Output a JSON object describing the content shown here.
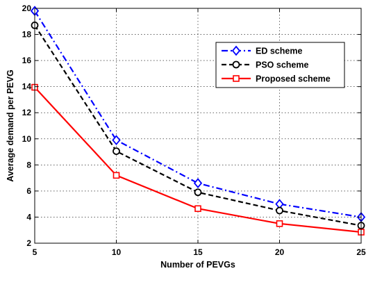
{
  "chart_data": {
    "type": "line",
    "title": "",
    "xlabel": "Number of PEVGs",
    "ylabel": "Average demand per PEVG",
    "x": [
      5,
      10,
      15,
      20,
      25
    ],
    "xlim": [
      5,
      25
    ],
    "ylim": [
      2,
      20
    ],
    "xticks": [
      5,
      10,
      15,
      20,
      25
    ],
    "yticks": [
      2,
      4,
      6,
      8,
      10,
      12,
      14,
      16,
      18,
      20
    ],
    "grid": true,
    "legend_position": "top-right",
    "series": [
      {
        "name": "ED scheme",
        "values": [
          19.8,
          9.9,
          6.6,
          5.0,
          4.0
        ],
        "color": "#0000ff",
        "line_style": "dash-dot",
        "marker": "diamond"
      },
      {
        "name": "PSO scheme",
        "values": [
          18.7,
          9.05,
          5.9,
          4.5,
          3.35
        ],
        "color": "#000000",
        "line_style": "dashed",
        "marker": "circle"
      },
      {
        "name": "Proposed scheme",
        "values": [
          13.95,
          7.2,
          4.65,
          3.5,
          2.85
        ],
        "color": "#ff0000",
        "line_style": "solid",
        "marker": "square"
      }
    ]
  }
}
